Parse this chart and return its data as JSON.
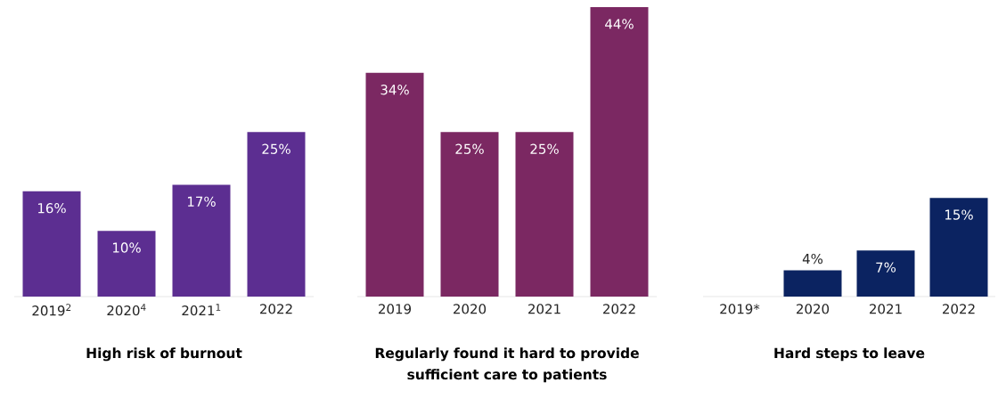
{
  "chart_data": [
    {
      "type": "bar",
      "title": "High risk of burnout",
      "categories": [
        "2019$^{2}$",
        "2020$^{4}$",
        "2021$^{1}$",
        "2022"
      ],
      "values": [
        16,
        10,
        17,
        25
      ],
      "color": "#5c2e91",
      "value_labels": [
        "16%",
        "10%",
        "17%",
        "25%"
      ]
    },
    {
      "type": "bar",
      "title": "Regularly found it hard to provide sufficient care to patients",
      "categories": [
        "2019",
        "2020",
        "2021",
        "2022"
      ],
      "values": [
        34,
        25,
        25,
        44
      ],
      "color": "#7b2862",
      "value_labels": [
        "34%",
        "25%",
        "25%",
        "44%"
      ]
    },
    {
      "type": "bar",
      "title": "Hard steps to leave",
      "categories": [
        "2019*",
        "2020",
        "2021",
        "2022"
      ],
      "values": [
        null,
        4,
        7,
        15
      ],
      "color": "#0b2361",
      "value_labels": [
        null,
        "4%",
        "7%",
        "15%"
      ]
    }
  ]
}
